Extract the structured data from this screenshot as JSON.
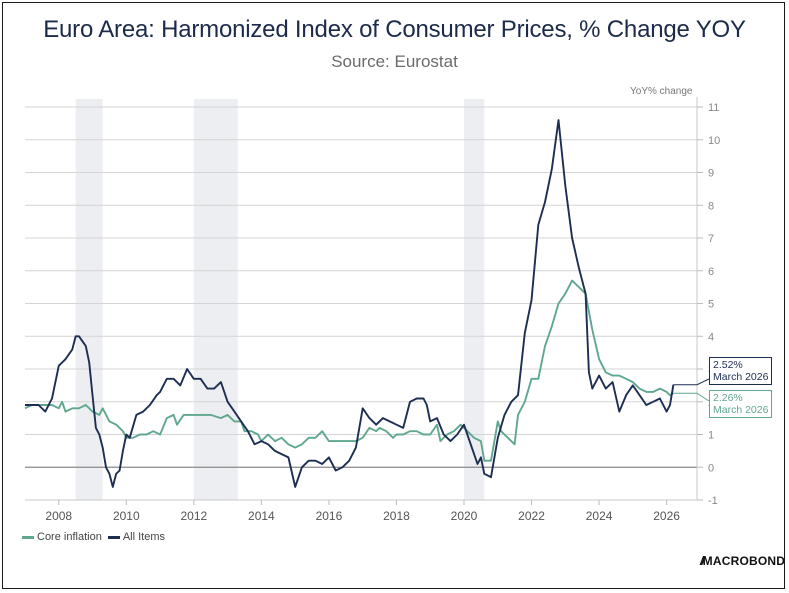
{
  "header": {
    "title": "Euro Area: Harmonized Index of Consumer Prices, % Change YOY",
    "subtitle": "Source: Eurostat"
  },
  "branding": {
    "logo_text": "MACROBOND"
  },
  "colors": {
    "all_items": "#1c2e52",
    "core": "#5fa88e",
    "recession": "#edeef1",
    "grid": "#d4d4d4",
    "zero_line": "#8a8a8a"
  },
  "callouts": [
    {
      "series": "All Items",
      "value_label": "2.52%",
      "date_label": "March 2026",
      "value": 2.52
    },
    {
      "series": "Core inflation",
      "value_label": "2.26%",
      "date_label": "March 2026",
      "value": 2.26
    }
  ],
  "chart_data": {
    "type": "line",
    "title": "Euro Area: Harmonized Index of Consumer Prices, % Change YOY",
    "subtitle": "Source: Eurostat",
    "xlabel": "",
    "ylabel": "YoY% change",
    "xlim": [
      2007.0,
      2026.9
    ],
    "ylim": [
      -1,
      11
    ],
    "y_axis_side": "right",
    "grid": true,
    "legend_position": "bottom-left",
    "x_ticks": [
      2008,
      2010,
      2012,
      2014,
      2016,
      2018,
      2020,
      2022,
      2024,
      2026
    ],
    "x_tick_labels": [
      "2008",
      "2010",
      "2012",
      "2014",
      "2016",
      "2018",
      "2020",
      "2022",
      "2024",
      "2026"
    ],
    "y_ticks": [
      -1,
      0,
      1,
      2,
      3,
      4,
      5,
      6,
      7,
      8,
      9,
      10,
      11
    ],
    "y_tick_labels": [
      "-1",
      "0",
      "1",
      "2",
      "3",
      "4",
      "5",
      "6",
      "7",
      "8",
      "9",
      "10",
      "11"
    ],
    "recession_periods": [
      [
        2008.5,
        2009.3
      ],
      [
        2012.0,
        2013.3
      ],
      [
        2020.0,
        2020.6
      ]
    ],
    "series": [
      {
        "name": "Core inflation",
        "color": "#5fa88e",
        "points": [
          [
            2007.0,
            1.8
          ],
          [
            2007.2,
            1.9
          ],
          [
            2007.4,
            1.9
          ],
          [
            2007.6,
            1.9
          ],
          [
            2007.8,
            1.9
          ],
          [
            2008.0,
            1.8
          ],
          [
            2008.1,
            2.0
          ],
          [
            2008.2,
            1.7
          ],
          [
            2008.4,
            1.8
          ],
          [
            2008.6,
            1.8
          ],
          [
            2008.8,
            1.9
          ],
          [
            2009.0,
            1.7
          ],
          [
            2009.2,
            1.6
          ],
          [
            2009.3,
            1.8
          ],
          [
            2009.5,
            1.4
          ],
          [
            2009.7,
            1.3
          ],
          [
            2009.9,
            1.1
          ],
          [
            2010.0,
            0.9
          ],
          [
            2010.2,
            0.9
          ],
          [
            2010.4,
            1.0
          ],
          [
            2010.6,
            1.0
          ],
          [
            2010.8,
            1.1
          ],
          [
            2011.0,
            1.0
          ],
          [
            2011.2,
            1.5
          ],
          [
            2011.4,
            1.6
          ],
          [
            2011.5,
            1.3
          ],
          [
            2011.7,
            1.6
          ],
          [
            2011.9,
            1.6
          ],
          [
            2012.2,
            1.6
          ],
          [
            2012.5,
            1.6
          ],
          [
            2012.8,
            1.5
          ],
          [
            2013.0,
            1.6
          ],
          [
            2013.2,
            1.4
          ],
          [
            2013.4,
            1.4
          ],
          [
            2013.5,
            1.1
          ],
          [
            2013.7,
            1.1
          ],
          [
            2013.9,
            1.0
          ],
          [
            2014.0,
            0.8
          ],
          [
            2014.2,
            1.0
          ],
          [
            2014.4,
            0.8
          ],
          [
            2014.6,
            0.9
          ],
          [
            2014.8,
            0.7
          ],
          [
            2015.0,
            0.6
          ],
          [
            2015.2,
            0.7
          ],
          [
            2015.4,
            0.9
          ],
          [
            2015.6,
            0.9
          ],
          [
            2015.8,
            1.1
          ],
          [
            2016.0,
            0.8
          ],
          [
            2016.2,
            0.8
          ],
          [
            2016.4,
            0.8
          ],
          [
            2016.6,
            0.8
          ],
          [
            2016.8,
            0.8
          ],
          [
            2017.0,
            0.9
          ],
          [
            2017.2,
            1.2
          ],
          [
            2017.4,
            1.1
          ],
          [
            2017.5,
            1.2
          ],
          [
            2017.7,
            1.1
          ],
          [
            2017.9,
            0.9
          ],
          [
            2018.0,
            1.0
          ],
          [
            2018.2,
            1.0
          ],
          [
            2018.4,
            1.1
          ],
          [
            2018.6,
            1.1
          ],
          [
            2018.8,
            1.0
          ],
          [
            2019.0,
            1.0
          ],
          [
            2019.2,
            1.3
          ],
          [
            2019.3,
            0.8
          ],
          [
            2019.5,
            1.0
          ],
          [
            2019.7,
            1.1
          ],
          [
            2019.9,
            1.3
          ],
          [
            2020.1,
            1.1
          ],
          [
            2020.3,
            0.9
          ],
          [
            2020.5,
            0.8
          ],
          [
            2020.6,
            0.2
          ],
          [
            2020.8,
            0.2
          ],
          [
            2021.0,
            1.4
          ],
          [
            2021.1,
            1.1
          ],
          [
            2021.3,
            0.9
          ],
          [
            2021.5,
            0.7
          ],
          [
            2021.6,
            1.6
          ],
          [
            2021.8,
            2.0
          ],
          [
            2022.0,
            2.7
          ],
          [
            2022.2,
            2.7
          ],
          [
            2022.4,
            3.7
          ],
          [
            2022.6,
            4.3
          ],
          [
            2022.8,
            5.0
          ],
          [
            2023.0,
            5.3
          ],
          [
            2023.2,
            5.7
          ],
          [
            2023.4,
            5.5
          ],
          [
            2023.6,
            5.3
          ],
          [
            2023.8,
            4.2
          ],
          [
            2024.0,
            3.3
          ],
          [
            2024.2,
            2.9
          ],
          [
            2024.4,
            2.8
          ],
          [
            2024.6,
            2.8
          ],
          [
            2024.8,
            2.7
          ],
          [
            2025.0,
            2.6
          ],
          [
            2025.2,
            2.4
          ],
          [
            2025.4,
            2.3
          ],
          [
            2025.6,
            2.3
          ],
          [
            2025.8,
            2.4
          ],
          [
            2026.0,
            2.3
          ],
          [
            2026.1,
            2.2
          ],
          [
            2026.2,
            2.26
          ]
        ]
      },
      {
        "name": "All Items",
        "color": "#1c2e52",
        "points": [
          [
            2007.0,
            1.9
          ],
          [
            2007.2,
            1.9
          ],
          [
            2007.4,
            1.9
          ],
          [
            2007.6,
            1.7
          ],
          [
            2007.8,
            2.1
          ],
          [
            2008.0,
            3.1
          ],
          [
            2008.2,
            3.3
          ],
          [
            2008.4,
            3.6
          ],
          [
            2008.5,
            4.0
          ],
          [
            2008.6,
            4.0
          ],
          [
            2008.8,
            3.7
          ],
          [
            2008.9,
            3.2
          ],
          [
            2009.0,
            2.2
          ],
          [
            2009.1,
            1.2
          ],
          [
            2009.2,
            1.0
          ],
          [
            2009.3,
            0.6
          ],
          [
            2009.4,
            0.0
          ],
          [
            2009.5,
            -0.2
          ],
          [
            2009.6,
            -0.6
          ],
          [
            2009.7,
            -0.2
          ],
          [
            2009.8,
            -0.1
          ],
          [
            2009.9,
            0.5
          ],
          [
            2010.0,
            1.0
          ],
          [
            2010.1,
            0.9
          ],
          [
            2010.3,
            1.6
          ],
          [
            2010.5,
            1.7
          ],
          [
            2010.7,
            1.9
          ],
          [
            2010.9,
            2.2
          ],
          [
            2011.0,
            2.3
          ],
          [
            2011.2,
            2.7
          ],
          [
            2011.4,
            2.7
          ],
          [
            2011.6,
            2.5
          ],
          [
            2011.8,
            3.0
          ],
          [
            2012.0,
            2.7
          ],
          [
            2012.2,
            2.7
          ],
          [
            2012.4,
            2.4
          ],
          [
            2012.6,
            2.4
          ],
          [
            2012.8,
            2.6
          ],
          [
            2013.0,
            2.0
          ],
          [
            2013.2,
            1.7
          ],
          [
            2013.4,
            1.4
          ],
          [
            2013.6,
            1.1
          ],
          [
            2013.8,
            0.7
          ],
          [
            2014.0,
            0.8
          ],
          [
            2014.2,
            0.7
          ],
          [
            2014.4,
            0.5
          ],
          [
            2014.6,
            0.4
          ],
          [
            2014.8,
            0.3
          ],
          [
            2015.0,
            -0.6
          ],
          [
            2015.2,
            0.0
          ],
          [
            2015.4,
            0.2
          ],
          [
            2015.6,
            0.2
          ],
          [
            2015.8,
            0.1
          ],
          [
            2016.0,
            0.3
          ],
          [
            2016.2,
            -0.1
          ],
          [
            2016.4,
            0.0
          ],
          [
            2016.6,
            0.2
          ],
          [
            2016.8,
            0.6
          ],
          [
            2017.0,
            1.8
          ],
          [
            2017.2,
            1.5
          ],
          [
            2017.4,
            1.3
          ],
          [
            2017.6,
            1.5
          ],
          [
            2017.8,
            1.4
          ],
          [
            2018.0,
            1.3
          ],
          [
            2018.2,
            1.2
          ],
          [
            2018.4,
            2.0
          ],
          [
            2018.6,
            2.1
          ],
          [
            2018.8,
            2.1
          ],
          [
            2018.9,
            1.9
          ],
          [
            2019.0,
            1.4
          ],
          [
            2019.2,
            1.5
          ],
          [
            2019.4,
            1.0
          ],
          [
            2019.6,
            0.8
          ],
          [
            2019.8,
            1.0
          ],
          [
            2020.0,
            1.3
          ],
          [
            2020.2,
            0.7
          ],
          [
            2020.4,
            0.1
          ],
          [
            2020.5,
            0.3
          ],
          [
            2020.6,
            -0.2
          ],
          [
            2020.8,
            -0.3
          ],
          [
            2021.0,
            0.9
          ],
          [
            2021.2,
            1.6
          ],
          [
            2021.4,
            2.0
          ],
          [
            2021.6,
            2.2
          ],
          [
            2021.8,
            4.1
          ],
          [
            2022.0,
            5.1
          ],
          [
            2022.2,
            7.4
          ],
          [
            2022.4,
            8.1
          ],
          [
            2022.6,
            9.1
          ],
          [
            2022.8,
            10.6
          ],
          [
            2023.0,
            8.6
          ],
          [
            2023.2,
            7.0
          ],
          [
            2023.4,
            6.1
          ],
          [
            2023.6,
            5.3
          ],
          [
            2023.7,
            2.9
          ],
          [
            2023.8,
            2.4
          ],
          [
            2024.0,
            2.8
          ],
          [
            2024.2,
            2.4
          ],
          [
            2024.4,
            2.6
          ],
          [
            2024.6,
            1.7
          ],
          [
            2024.8,
            2.2
          ],
          [
            2025.0,
            2.5
          ],
          [
            2025.2,
            2.2
          ],
          [
            2025.4,
            1.9
          ],
          [
            2025.6,
            2.0
          ],
          [
            2025.8,
            2.1
          ],
          [
            2026.0,
            1.7
          ],
          [
            2026.1,
            1.9
          ],
          [
            2026.2,
            2.52
          ]
        ]
      }
    ]
  },
  "legend": {
    "items": [
      {
        "label": "Core inflation",
        "color": "#5fa88e"
      },
      {
        "label": "All Items",
        "color": "#1c2e52"
      }
    ]
  },
  "axis": {
    "y_unit_label": "YoY% change"
  }
}
